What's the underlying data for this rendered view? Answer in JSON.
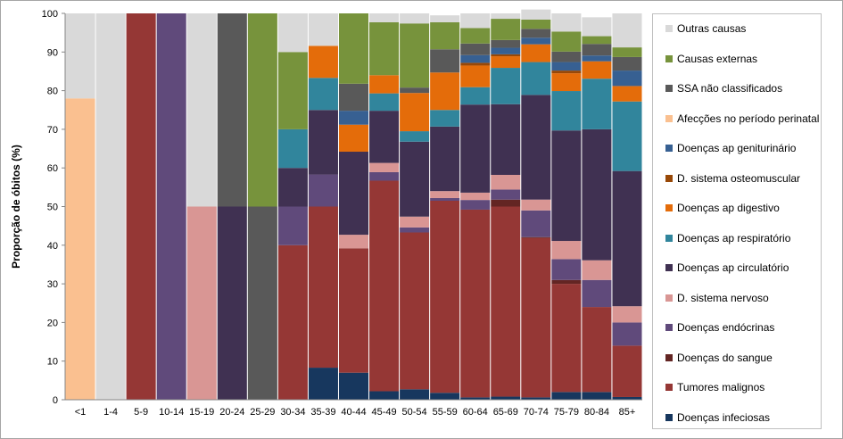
{
  "chart_data": {
    "type": "bar",
    "stacked": true,
    "ylabel": "Proporção de óbitos (%)",
    "ylim": [
      0,
      100
    ],
    "yticks": [
      0,
      10,
      20,
      30,
      40,
      50,
      60,
      70,
      80,
      90,
      100
    ],
    "legend_position": "right",
    "categories": [
      "<1",
      "1-4",
      "5-9",
      "10-14",
      "15-19",
      "20-24",
      "25-29",
      "30-34",
      "35-39",
      "40-44",
      "45-49",
      "50-54",
      "55-59",
      "60-64",
      "65-69",
      "70-74",
      "75-79",
      "80-84",
      "85+"
    ],
    "series": [
      {
        "name": "Doenças infeciosas",
        "color": "#17375e",
        "values": [
          0,
          0,
          0,
          0,
          0,
          0,
          0,
          0,
          8.3,
          7,
          2.2,
          2.7,
          1.8,
          0.6,
          0.8,
          0.6,
          2,
          2,
          0.7
        ]
      },
      {
        "name": "Tumores malignos",
        "color": "#953735",
        "values": [
          0,
          0,
          100,
          0,
          0,
          0,
          0,
          40,
          41.7,
          32.2,
          54.5,
          40.6,
          49.7,
          48.6,
          49.2,
          41.3,
          28,
          22,
          13.3
        ]
      },
      {
        "name": "Doenças do sangue",
        "color": "#632523",
        "values": [
          0,
          0,
          0,
          0,
          0,
          0,
          0,
          0,
          0,
          0,
          0,
          0,
          0,
          0,
          1.8,
          0.2,
          1,
          0,
          0
        ]
      },
      {
        "name": "Doenças endócrinas",
        "color": "#604a7b",
        "values": [
          0,
          0,
          0,
          100,
          0,
          0,
          0,
          10,
          8.3,
          0,
          2.2,
          1.3,
          0.7,
          2.5,
          2.6,
          6.9,
          5.4,
          7,
          6
        ]
      },
      {
        "name": "D. sistema nervoso",
        "color": "#d99694",
        "values": [
          0,
          0,
          0,
          0,
          50,
          0,
          0,
          0,
          0,
          3.5,
          2.4,
          2.8,
          1.8,
          1.9,
          3.8,
          2.8,
          4.7,
          5.1,
          4.2
        ]
      },
      {
        "name": "Doenças ap circulatório",
        "color": "#403152",
        "values": [
          0,
          0,
          0,
          0,
          0,
          50,
          0,
          10,
          16.7,
          21.5,
          13.5,
          19.4,
          16.7,
          22.8,
          18.3,
          27.1,
          28.6,
          33.9,
          35
        ]
      },
      {
        "name": "Doenças ap respiratório",
        "color": "#31859c",
        "values": [
          0,
          0,
          0,
          0,
          0,
          0,
          0,
          10,
          8.3,
          0,
          4.5,
          2.7,
          4.3,
          4.5,
          9.4,
          8.5,
          10.2,
          13.1,
          18
        ]
      },
      {
        "name": "Doenças ap digestivo",
        "color": "#e46c0a",
        "values": [
          0,
          0,
          0,
          0,
          0,
          0,
          0,
          0,
          8.3,
          7,
          4.7,
          9.9,
          9.7,
          5.6,
          3,
          4.6,
          4.6,
          4.5,
          4
        ]
      },
      {
        "name": "D. sistema osteomuscular",
        "color": "#984807",
        "values": [
          0,
          0,
          0,
          0,
          0,
          0,
          0,
          0,
          0,
          0,
          0,
          0,
          0,
          0.7,
          0.5,
          0,
          0.7,
          0,
          0
        ]
      },
      {
        "name": "Doenças ap geniturinário",
        "color": "#376092",
        "values": [
          0,
          0,
          0,
          0,
          0,
          0,
          0,
          0,
          0,
          3.6,
          0,
          0,
          0,
          2,
          1.7,
          1.7,
          2.2,
          1.5,
          4
        ]
      },
      {
        "name": "Afecções no período perinatal",
        "color": "#fac090",
        "values": [
          78,
          0,
          0,
          0,
          0,
          0,
          0,
          0,
          0,
          0,
          0,
          0,
          0,
          0,
          0,
          0,
          0,
          0,
          0
        ]
      },
      {
        "name": "SSA não classificados",
        "color": "#595959",
        "values": [
          0,
          0,
          0,
          0,
          0,
          50,
          50,
          0,
          0,
          7,
          0,
          1.4,
          6,
          3,
          2,
          2.3,
          2.7,
          3,
          3.5
        ]
      },
      {
        "name": "Causas externas",
        "color": "#77933c",
        "values": [
          0,
          0,
          0,
          0,
          0,
          0,
          50,
          20,
          0,
          18.2,
          13.7,
          16.6,
          7,
          4,
          5.5,
          2.4,
          5.2,
          2,
          2.5
        ]
      },
      {
        "name": "Outras causas",
        "color": "#d9d9d9",
        "values": [
          22,
          100,
          0,
          0,
          50,
          0,
          0,
          10,
          8.4,
          0,
          2.3,
          2.6,
          1.8,
          3.8,
          1.4,
          2.6,
          4.7,
          4.9,
          8.8
        ]
      }
    ]
  }
}
